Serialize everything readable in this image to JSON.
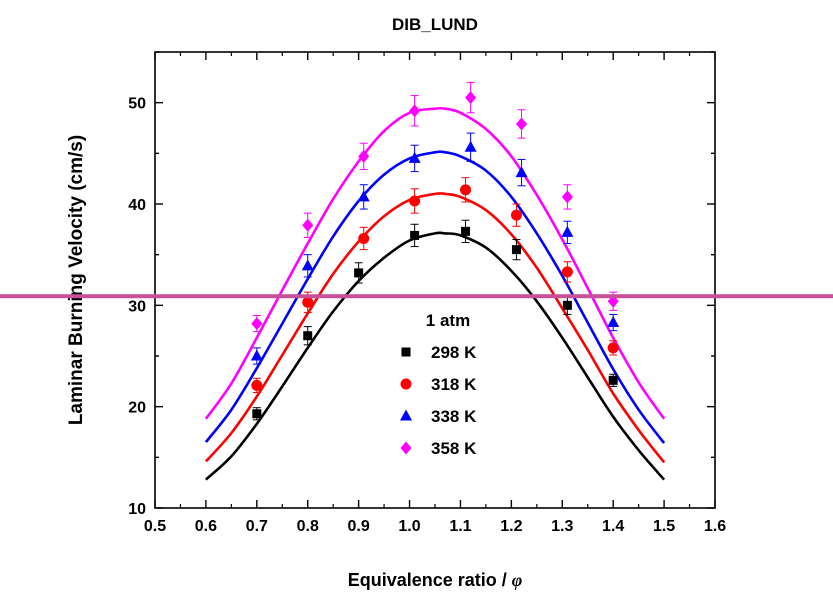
{
  "chart_data": {
    "type": "scatter",
    "title": "DIB_LUND",
    "xlabel": "Equivalence ratio / ",
    "xlabel_symbol": "φ",
    "ylabel": "Laminar Burning Velocity (cm/s)",
    "xlim": [
      0.5,
      1.6
    ],
    "ylim": [
      10,
      55
    ],
    "xticks": [
      "0.5",
      "0.6",
      "0.7",
      "0.8",
      "0.9",
      "1.0",
      "1.1",
      "1.2",
      "1.3",
      "1.4",
      "1.5",
      "1.6"
    ],
    "yticks": [
      "10",
      "20",
      "30",
      "40",
      "50"
    ],
    "legend_title": "1 atm",
    "legend_position": "center",
    "series": [
      {
        "name": "298 K",
        "color": "#000000",
        "marker": "square",
        "x": [
          0.7,
          0.8,
          0.9,
          1.01,
          1.11,
          1.21,
          1.31,
          1.4
        ],
        "y": [
          19.3,
          27.0,
          33.2,
          36.9,
          37.3,
          35.5,
          30.0,
          22.6
        ],
        "err": [
          0.6,
          0.9,
          1.0,
          1.1,
          1.1,
          1.0,
          0.9,
          0.6
        ],
        "fit": {
          "x": [
            0.6,
            0.65,
            0.7,
            0.75,
            0.8,
            0.85,
            0.9,
            0.95,
            1.0,
            1.05,
            1.07,
            1.1,
            1.15,
            1.2,
            1.25,
            1.3,
            1.35,
            1.4,
            1.45,
            1.5
          ],
          "y": [
            12.8,
            15.1,
            18.3,
            22.0,
            25.8,
            29.4,
            32.4,
            34.7,
            36.4,
            37.1,
            37.1,
            36.9,
            35.7,
            33.4,
            30.4,
            26.8,
            22.9,
            19.0,
            15.7,
            12.8
          ]
        }
      },
      {
        "name": "318 K",
        "color": "#ff0000",
        "marker": "circle",
        "x": [
          0.7,
          0.8,
          0.91,
          1.01,
          1.11,
          1.21,
          1.31,
          1.4
        ],
        "y": [
          22.1,
          30.3,
          36.6,
          40.3,
          41.4,
          38.9,
          33.3,
          25.8
        ],
        "err": [
          0.7,
          1.0,
          1.1,
          1.2,
          1.2,
          1.1,
          1.0,
          0.7
        ],
        "fit": {
          "x": [
            0.6,
            0.65,
            0.7,
            0.75,
            0.8,
            0.85,
            0.9,
            0.95,
            1.0,
            1.05,
            1.07,
            1.1,
            1.15,
            1.2,
            1.25,
            1.3,
            1.35,
            1.4,
            1.45,
            1.5
          ],
          "y": [
            14.6,
            17.4,
            21.0,
            25.1,
            29.2,
            33.1,
            36.3,
            38.8,
            40.4,
            41.0,
            41.0,
            40.7,
            39.4,
            37.0,
            33.7,
            29.7,
            25.6,
            21.3,
            17.7,
            14.5
          ]
        }
      },
      {
        "name": "338 K",
        "color": "#0000ff",
        "marker": "triangle",
        "x": [
          0.7,
          0.8,
          0.91,
          1.01,
          1.12,
          1.22,
          1.31,
          1.4
        ],
        "y": [
          25.0,
          33.9,
          40.7,
          44.5,
          45.6,
          43.1,
          37.2,
          28.3
        ],
        "err": [
          0.8,
          1.1,
          1.2,
          1.3,
          1.4,
          1.3,
          1.1,
          0.8
        ],
        "fit": {
          "x": [
            0.6,
            0.65,
            0.7,
            0.75,
            0.8,
            0.85,
            0.9,
            0.95,
            1.0,
            1.05,
            1.07,
            1.1,
            1.15,
            1.2,
            1.25,
            1.3,
            1.35,
            1.4,
            1.45,
            1.5
          ],
          "y": [
            16.5,
            19.7,
            23.8,
            28.2,
            32.6,
            36.8,
            40.3,
            42.9,
            44.5,
            45.1,
            45.1,
            44.7,
            43.3,
            40.7,
            37.1,
            32.9,
            28.3,
            23.7,
            19.7,
            16.4
          ]
        }
      },
      {
        "name": "358 K",
        "color": "#ff00ff",
        "marker": "diamond",
        "x": [
          0.7,
          0.8,
          0.91,
          1.01,
          1.12,
          1.22,
          1.31,
          1.4
        ],
        "y": [
          28.2,
          37.9,
          44.7,
          49.2,
          50.5,
          47.9,
          40.7,
          30.4
        ],
        "err": [
          0.8,
          1.2,
          1.3,
          1.5,
          1.5,
          1.4,
          1.2,
          0.9
        ],
        "fit": {
          "x": [
            0.6,
            0.65,
            0.7,
            0.75,
            0.8,
            0.85,
            0.9,
            0.95,
            1.0,
            1.05,
            1.07,
            1.1,
            1.15,
            1.2,
            1.25,
            1.3,
            1.35,
            1.4,
            1.45,
            1.5
          ],
          "y": [
            18.8,
            22.3,
            26.8,
            31.5,
            36.1,
            40.5,
            44.2,
            47.2,
            49.0,
            49.4,
            49.4,
            49.0,
            47.4,
            44.7,
            40.9,
            36.5,
            31.7,
            26.8,
            22.4,
            18.8
          ]
        }
      }
    ],
    "overlay_line": {
      "y": 30.9,
      "color": "#c8509a"
    }
  }
}
